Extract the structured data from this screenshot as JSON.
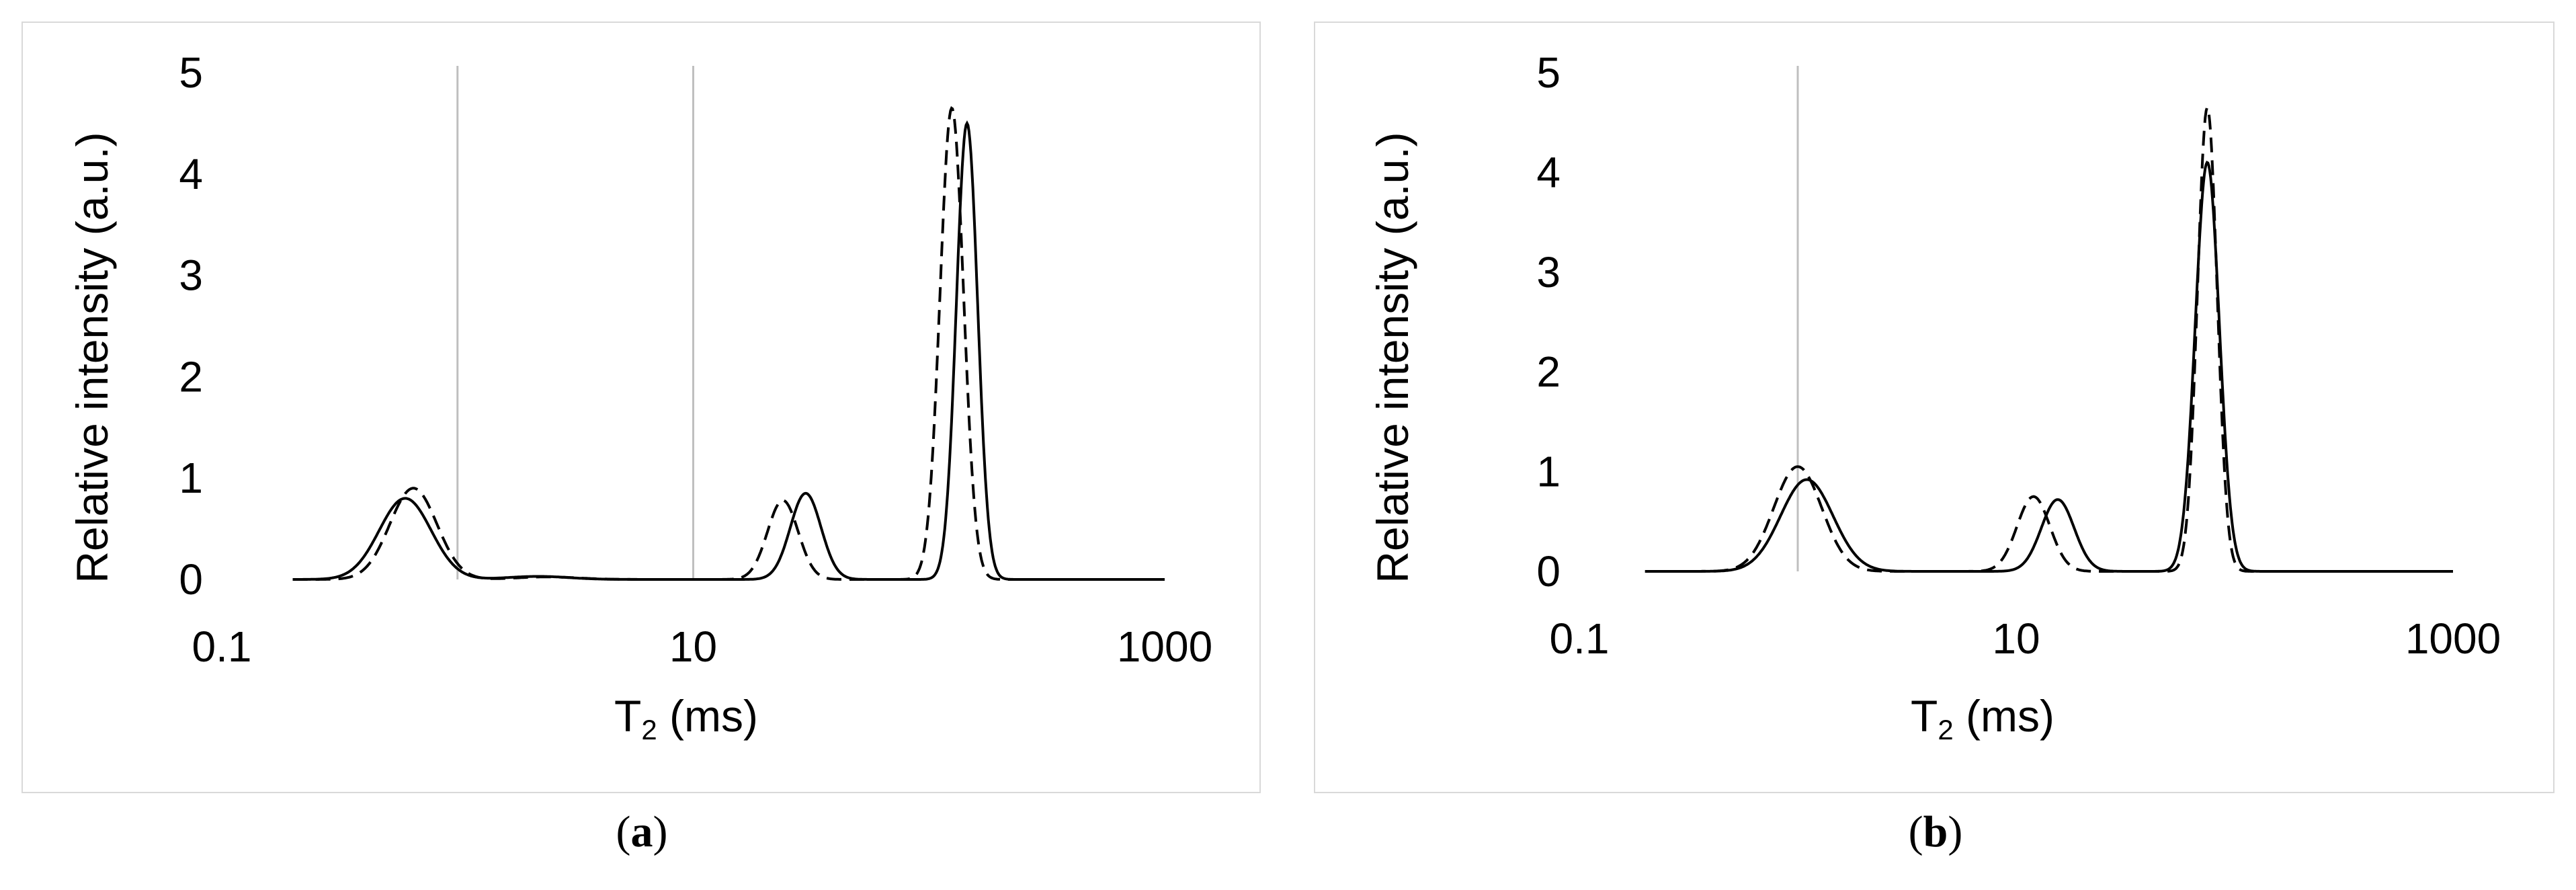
{
  "chart_data": [
    {
      "type": "line",
      "panel": "a",
      "caption_open": "(",
      "caption_letter": "a",
      "caption_close": ")",
      "ylabel": "Relative intensity (a.u.)",
      "xlabel_main": "T",
      "xlabel_sub": "2",
      "xlabel_unit": " (ms)",
      "xscale": "log",
      "xlim": [
        0.1,
        1000
      ],
      "ylim": [
        0,
        5
      ],
      "x_tick_labels": [
        "0.1",
        "10",
        "1000"
      ],
      "y_tick_labels": [
        "0",
        "1",
        "2",
        "3",
        "4",
        "5"
      ],
      "gridlines_x": [
        1,
        10
      ],
      "series": [
        {
          "style": "solid",
          "color": "#000000",
          "peaks": [
            {
              "center": 0.6,
              "height": 0.8,
              "width_log10": 0.11
            },
            {
              "center": 2.2,
              "height": 0.03,
              "width_log10": 0.13
            },
            {
              "center": 30,
              "height": 0.85,
              "width_log10": 0.065
            },
            {
              "center": 145,
              "height": 4.5,
              "width_log10": 0.045
            }
          ]
        },
        {
          "style": "dashed",
          "color": "#000000",
          "peaks": [
            {
              "center": 0.65,
              "height": 0.9,
              "width_log10": 0.1
            },
            {
              "center": 2.4,
              "height": 0.025,
              "width_log10": 0.13
            },
            {
              "center": 24,
              "height": 0.78,
              "width_log10": 0.065
            },
            {
              "center": 125,
              "height": 4.65,
              "width_log10": 0.05
            }
          ]
        }
      ]
    },
    {
      "type": "line",
      "panel": "b",
      "caption_open": "(",
      "caption_letter": "b",
      "caption_close": ")",
      "ylabel": "Relative intensity (a.u.)",
      "xlabel_main": "T",
      "xlabel_sub": "2",
      "xlabel_unit": " (ms)",
      "xscale": "log",
      "xlim": [
        0.1,
        1000
      ],
      "ylim": [
        0,
        5
      ],
      "x_tick_labels": [
        "0.1",
        "10",
        "1000"
      ],
      "y_tick_labels": [
        "0",
        "1",
        "2",
        "3",
        "4",
        "5"
      ],
      "gridlines_x": [
        1
      ],
      "series": [
        {
          "style": "solid",
          "color": "#000000",
          "peaks": [
            {
              "center": 1.1,
              "height": 0.92,
              "width_log10": 0.12
            },
            {
              "center": 15.5,
              "height": 0.72,
              "width_log10": 0.075
            },
            {
              "center": 75,
              "height": 4.1,
              "width_log10": 0.055
            }
          ]
        },
        {
          "style": "dashed",
          "color": "#000000",
          "peaks": [
            {
              "center": 1.0,
              "height": 1.05,
              "width_log10": 0.11
            },
            {
              "center": 12,
              "height": 0.75,
              "width_log10": 0.075
            },
            {
              "center": 75,
              "height": 4.65,
              "width_log10": 0.045
            }
          ]
        }
      ]
    }
  ]
}
